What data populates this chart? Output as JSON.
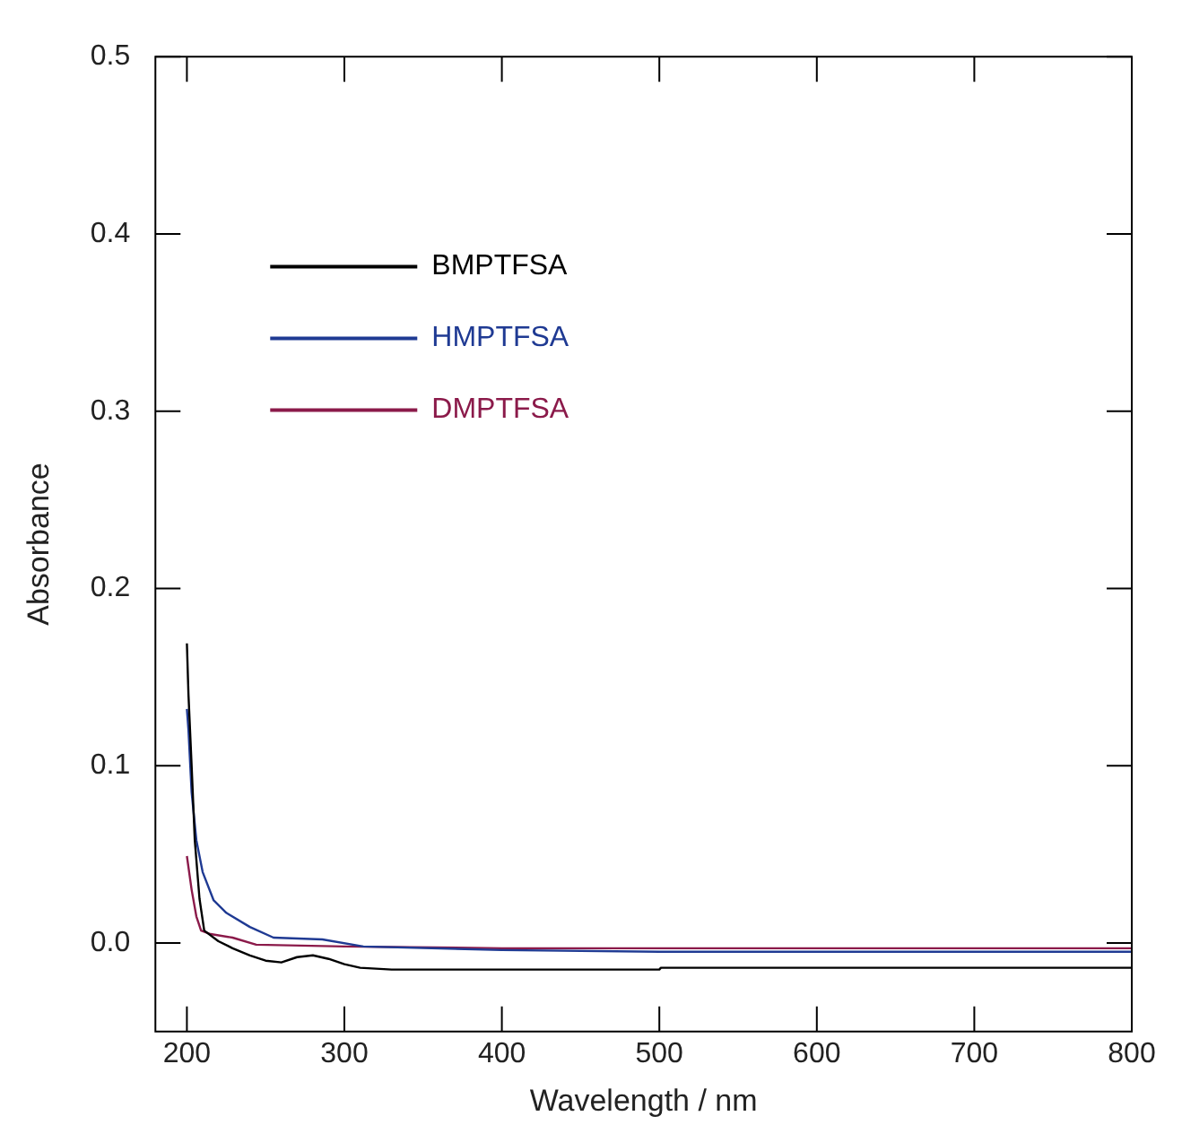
{
  "chart_data": {
    "type": "line",
    "xlabel": "Wavelength / nm",
    "ylabel": "Absorbance",
    "xlim": [
      180,
      800
    ],
    "xticks": [
      200,
      300,
      400,
      500,
      600,
      700,
      800
    ],
    "ylim": [
      -0.05,
      0.5
    ],
    "yticks": [
      {
        "value": 0,
        "label": "0.0"
      },
      0.1,
      0.2,
      0.3,
      0.4,
      0.5
    ],
    "grid": false,
    "legend": "top left",
    "marker": "none",
    "line_style": "solid",
    "series": [
      {
        "name": "BMPTFSA",
        "color": "#000000",
        "x": [
          200,
          201,
          203,
          205,
          208,
          211,
          220,
          229,
          240,
          250,
          260,
          270,
          280,
          290,
          300,
          310,
          330,
          400,
          500,
          501,
          800
        ],
        "values": [
          0.169,
          0.14,
          0.1,
          0.058,
          0.025,
          0.007,
          0.001,
          -0.003,
          -0.007,
          -0.01,
          -0.011,
          -0.008,
          -0.007,
          -0.009,
          -0.012,
          -0.014,
          -0.015,
          -0.015,
          -0.015,
          -0.014,
          -0.014
        ]
      },
      {
        "name": "HMPTFSA",
        "color": "#1f3a93",
        "x": [
          200,
          201,
          203,
          206,
          210,
          217,
          225,
          240,
          255,
          286,
          312,
          400,
          500,
          800
        ],
        "values": [
          0.132,
          0.12,
          0.085,
          0.058,
          0.04,
          0.024,
          0.017,
          0.009,
          0.003,
          0.002,
          -0.002,
          -0.004,
          -0.005,
          -0.005
        ]
      },
      {
        "name": "DMPTFSA",
        "color": "#8b1a4a",
        "x": [
          200,
          203,
          206,
          209,
          215,
          229,
          244,
          300,
          400,
          800
        ],
        "values": [
          0.049,
          0.03,
          0.015,
          0.007,
          0.005,
          0.003,
          -0.001,
          -0.002,
          -0.003,
          -0.003
        ]
      }
    ]
  }
}
